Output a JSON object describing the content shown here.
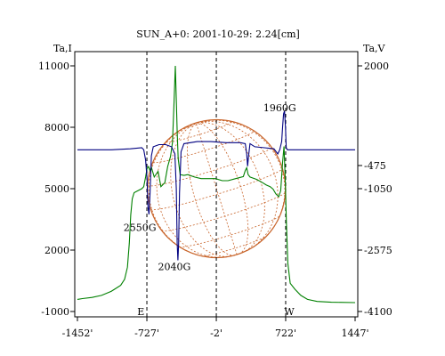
{
  "chart_data": {
    "type": "line",
    "title": "SUN_A+0: 2001-10-29: 2.24[cm]",
    "ylabel_left": "Ta,I",
    "ylabel_right": "Ta,V",
    "xlim": [
      -1452,
      1447
    ],
    "ylim_left": [
      -1000,
      11000
    ],
    "ylim_right": [
      -4100,
      2000
    ],
    "x_ticks": [
      {
        "value": -1452,
        "label": "-1452'"
      },
      {
        "value": -727,
        "label": "-727'"
      },
      {
        "value": -2,
        "label": "-2'"
      },
      {
        "value": 722,
        "label": "722'"
      },
      {
        "value": 1447,
        "label": "1447'"
      }
    ],
    "left_ticks": [
      {
        "value": 11000,
        "label": "11000"
      },
      {
        "value": 8000,
        "label": "8000"
      },
      {
        "value": 5000,
        "label": "5000"
      },
      {
        "value": 2000,
        "label": "2000"
      },
      {
        "value": -1000,
        "label": "-1000"
      }
    ],
    "right_ticks": [
      {
        "value": 2000,
        "label": "2000"
      },
      {
        "value": -475,
        "label": "-475"
      },
      {
        "value": -1050,
        "label": "-1050"
      },
      {
        "value": -2575,
        "label": "-2575"
      },
      {
        "value": -4100,
        "label": "-4100"
      }
    ],
    "vlines_x": [
      -727,
      -2,
      722
    ],
    "grid": false,
    "disk_radius": 720,
    "colors": {
      "intensity": "#000080",
      "polarization": "#008000",
      "disk": "#c8642a",
      "axes": "#000000"
    },
    "series": [
      {
        "axis": "left",
        "points": [
          [
            -1452,
            6900
          ],
          [
            -1300,
            6900
          ],
          [
            -1100,
            6900
          ],
          [
            -900,
            6950
          ],
          [
            -780,
            7000
          ],
          [
            -760,
            6900
          ],
          [
            -740,
            6400
          ],
          [
            -725,
            5500
          ],
          [
            -715,
            4100
          ],
          [
            -705,
            3750
          ],
          [
            -695,
            4700
          ],
          [
            -680,
            6600
          ],
          [
            -660,
            7050
          ],
          [
            -600,
            7150
          ],
          [
            -530,
            7150
          ],
          [
            -470,
            7050
          ],
          [
            -435,
            6700
          ],
          [
            -420,
            5000
          ],
          [
            -410,
            2300
          ],
          [
            -403,
            1500
          ],
          [
            -396,
            2300
          ],
          [
            -386,
            4800
          ],
          [
            -370,
            6800
          ],
          [
            -340,
            7200
          ],
          [
            -200,
            7300
          ],
          [
            -60,
            7300
          ],
          [
            100,
            7250
          ],
          [
            250,
            7250
          ],
          [
            300,
            7200
          ],
          [
            315,
            6700
          ],
          [
            325,
            6100
          ],
          [
            335,
            6600
          ],
          [
            350,
            7200
          ],
          [
            400,
            7050
          ],
          [
            500,
            7000
          ],
          [
            600,
            6950
          ],
          [
            640,
            6700
          ],
          [
            660,
            6900
          ],
          [
            680,
            7300
          ],
          [
            690,
            8000
          ],
          [
            700,
            8650
          ],
          [
            710,
            8800
          ],
          [
            720,
            8000
          ],
          [
            728,
            7000
          ],
          [
            740,
            6900
          ],
          [
            900,
            6900
          ],
          [
            1100,
            6900
          ],
          [
            1300,
            6900
          ],
          [
            1447,
            6900
          ]
        ]
      },
      {
        "axis": "right",
        "points": [
          [
            -1452,
            -3800
          ],
          [
            -1400,
            -3780
          ],
          [
            -1300,
            -3750
          ],
          [
            -1200,
            -3700
          ],
          [
            -1100,
            -3600
          ],
          [
            -1000,
            -3450
          ],
          [
            -960,
            -3300
          ],
          [
            -930,
            -3000
          ],
          [
            -910,
            -2400
          ],
          [
            -895,
            -1700
          ],
          [
            -880,
            -1300
          ],
          [
            -860,
            -1150
          ],
          [
            -820,
            -1100
          ],
          [
            -780,
            -1050
          ],
          [
            -760,
            -1000
          ],
          [
            -740,
            -760
          ],
          [
            -725,
            -550
          ],
          [
            -710,
            -500
          ],
          [
            -695,
            -600
          ],
          [
            -680,
            -520
          ],
          [
            -650,
            -760
          ],
          [
            -610,
            -620
          ],
          [
            -580,
            -1000
          ],
          [
            -540,
            -900
          ],
          [
            -510,
            -500
          ],
          [
            -480,
            -250
          ],
          [
            -460,
            100
          ],
          [
            -445,
            1000
          ],
          [
            -430,
            2000
          ],
          [
            -418,
            1000
          ],
          [
            -410,
            350
          ],
          [
            -400,
            -300
          ],
          [
            -380,
            -700
          ],
          [
            -340,
            -720
          ],
          [
            -300,
            -700
          ],
          [
            -230,
            -760
          ],
          [
            -160,
            -800
          ],
          [
            -80,
            -800
          ],
          [
            -10,
            -800
          ],
          [
            60,
            -850
          ],
          [
            120,
            -850
          ],
          [
            200,
            -800
          ],
          [
            280,
            -750
          ],
          [
            300,
            -600
          ],
          [
            315,
            -530
          ],
          [
            330,
            -700
          ],
          [
            350,
            -760
          ],
          [
            420,
            -820
          ],
          [
            480,
            -900
          ],
          [
            520,
            -960
          ],
          [
            560,
            -1000
          ],
          [
            590,
            -1060
          ],
          [
            620,
            -1180
          ],
          [
            650,
            -1250
          ],
          [
            670,
            -1100
          ],
          [
            690,
            -400
          ],
          [
            705,
            0
          ],
          [
            718,
            -800
          ],
          [
            730,
            -1900
          ],
          [
            745,
            -2900
          ],
          [
            770,
            -3400
          ],
          [
            820,
            -3550
          ],
          [
            880,
            -3700
          ],
          [
            950,
            -3800
          ],
          [
            1050,
            -3850
          ],
          [
            1200,
            -3870
          ],
          [
            1447,
            -3880
          ]
        ]
      }
    ],
    "annotations": [
      {
        "text": "1960G",
        "x": 660,
        "y_left": 8950
      },
      {
        "text": "2550G",
        "x": -800,
        "y_left": 3100
      },
      {
        "text": "2040G",
        "x": -440,
        "y_left": 1200
      },
      {
        "text": "E",
        "x": -790,
        "y_left": -1000
      },
      {
        "text": "W",
        "x": 760,
        "y_left": -1000
      }
    ]
  }
}
